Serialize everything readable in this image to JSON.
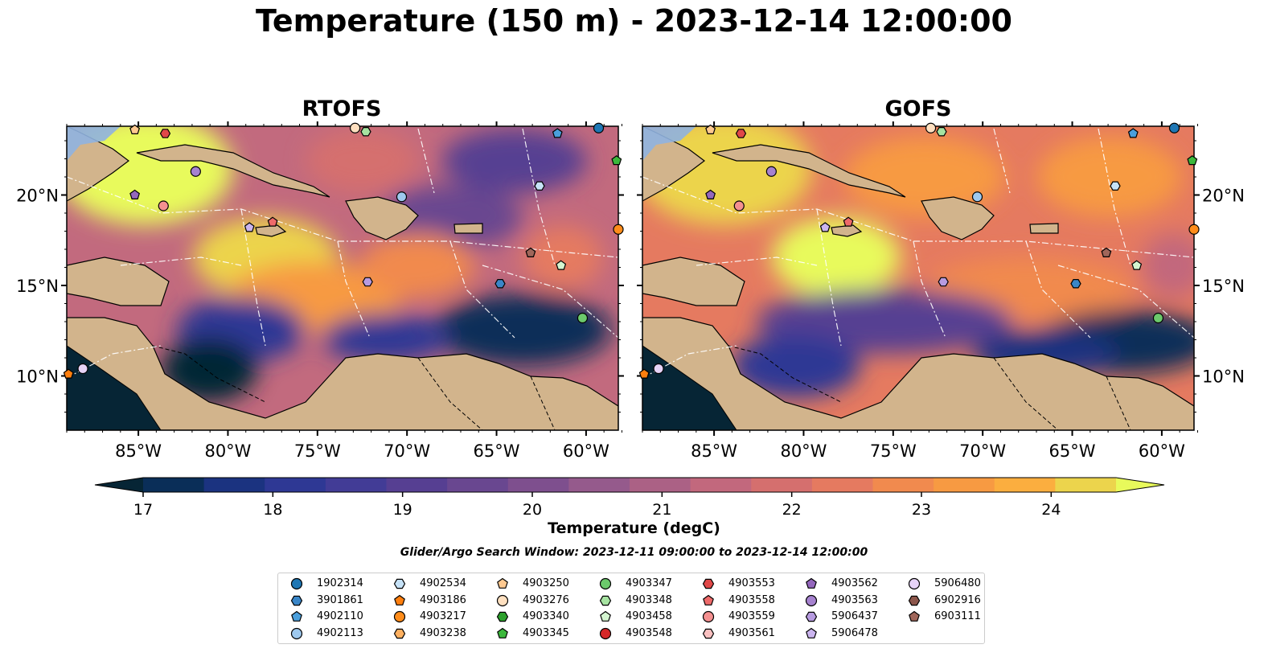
{
  "title": "Temperature (150 m) - 2023-12-14 12:00:00",
  "panels": [
    {
      "title": "RTOFS"
    },
    {
      "title": "GOFS"
    }
  ],
  "axes": {
    "lon_ticks": [
      "85°W",
      "80°W",
      "75°W",
      "70°W",
      "65°W",
      "60°W"
    ],
    "lat_ticks": [
      "20°N",
      "15°N",
      "10°N"
    ],
    "lon_range": [
      -89,
      -58.2
    ],
    "lat_range": [
      7,
      23.8
    ]
  },
  "colorbar": {
    "label": "Temperature (degC)",
    "ticks": [
      "17",
      "18",
      "19",
      "20",
      "21",
      "22",
      "23",
      "24"
    ],
    "min": 16.5,
    "max": 24.5,
    "colors": [
      "#062535",
      "#0a2e58",
      "#1b3380",
      "#2e3894",
      "#423c96",
      "#563f92",
      "#694790",
      "#7e4f8e",
      "#955a8c",
      "#ab6185",
      "#c2687d",
      "#d56f6e",
      "#e57a60",
      "#f18a4e",
      "#f79a42",
      "#fbae3f",
      "#ecd44c",
      "#e8fa5b"
    ]
  },
  "search_window": "Glider/Argo Search Window: 2023-12-11 09:00:00 to 2023-12-14 12:00:00",
  "legend": [
    {
      "id": "1902314",
      "marker": "circle",
      "color": "#1f77b4"
    },
    {
      "id": "3901861",
      "marker": "hexagon",
      "color": "#3a86c8"
    },
    {
      "id": "4902110",
      "marker": "pentagon",
      "color": "#4a9fdc"
    },
    {
      "id": "4902113",
      "marker": "circle",
      "color": "#9ec9ef"
    },
    {
      "id": "4902534",
      "marker": "hexagon",
      "color": "#c6e2f7"
    },
    {
      "id": "4903186",
      "marker": "pentagon",
      "color": "#ff7f0e"
    },
    {
      "id": "4903217",
      "marker": "circle",
      "color": "#ff8c1a"
    },
    {
      "id": "4903238",
      "marker": "hexagon",
      "color": "#ffb060"
    },
    {
      "id": "4903250",
      "marker": "pentagon",
      "color": "#ffc990"
    },
    {
      "id": "4903276",
      "marker": "circle",
      "color": "#ffe0c0"
    },
    {
      "id": "4903340",
      "marker": "hexagon",
      "color": "#2ca02c"
    },
    {
      "id": "4903345",
      "marker": "pentagon",
      "color": "#3cb83c"
    },
    {
      "id": "4903347",
      "marker": "circle",
      "color": "#6cc96c"
    },
    {
      "id": "4903348",
      "marker": "hexagon",
      "color": "#a6e3a1"
    },
    {
      "id": "4903458",
      "marker": "pentagon",
      "color": "#d4f5d0"
    },
    {
      "id": "4903548",
      "marker": "circle",
      "color": "#d62728"
    },
    {
      "id": "4903553",
      "marker": "hexagon",
      "color": "#e04848"
    },
    {
      "id": "4903558",
      "marker": "pentagon",
      "color": "#ee6a6a"
    },
    {
      "id": "4903559",
      "marker": "circle",
      "color": "#f49090"
    },
    {
      "id": "4903561",
      "marker": "hexagon",
      "color": "#f9c0c0"
    },
    {
      "id": "4903562",
      "marker": "pentagon",
      "color": "#9467bd"
    },
    {
      "id": "4903563",
      "marker": "circle",
      "color": "#a682cf"
    },
    {
      "id": "5906437",
      "marker": "hexagon",
      "color": "#b79be0"
    },
    {
      "id": "5906478",
      "marker": "pentagon",
      "color": "#cbb5ef"
    },
    {
      "id": "5906480",
      "marker": "circle",
      "color": "#e6d3f7"
    },
    {
      "id": "6902916",
      "marker": "hexagon",
      "color": "#8c564b"
    },
    {
      "id": "6903111",
      "marker": "pentagon",
      "color": "#a0665a"
    }
  ],
  "map_markers": [
    {
      "id": "1902314",
      "lon": -59.3,
      "lat": 23.7
    },
    {
      "id": "3901861",
      "lon": -64.8,
      "lat": 15.1
    },
    {
      "id": "4902110",
      "lon": -61.6,
      "lat": 23.4
    },
    {
      "id": "4902113",
      "lon": -70.3,
      "lat": 19.9
    },
    {
      "id": "4902534",
      "lon": -62.6,
      "lat": 20.5
    },
    {
      "id": "4903186",
      "lon": -88.9,
      "lat": 10.1
    },
    {
      "id": "4903217",
      "lon": -58.2,
      "lat": 18.1
    },
    {
      "id": "4903250",
      "lon": -85.2,
      "lat": 23.6
    },
    {
      "id": "4903276",
      "lon": -72.9,
      "lat": 23.7
    },
    {
      "id": "4903345",
      "lon": -58.3,
      "lat": 21.9
    },
    {
      "id": "4903347",
      "lon": -60.2,
      "lat": 13.2
    },
    {
      "id": "4903348",
      "lon": -72.3,
      "lat": 23.5
    },
    {
      "id": "4903458",
      "lon": -61.4,
      "lat": 16.1
    },
    {
      "id": "4903553",
      "lon": -83.5,
      "lat": 23.4
    },
    {
      "id": "4903558",
      "lon": -77.5,
      "lat": 18.5
    },
    {
      "id": "4903559",
      "lon": -83.6,
      "lat": 19.4
    },
    {
      "id": "4903562",
      "lon": -85.2,
      "lat": 20.0
    },
    {
      "id": "4903563",
      "lon": -81.8,
      "lat": 21.3
    },
    {
      "id": "5906437",
      "lon": -72.2,
      "lat": 15.2
    },
    {
      "id": "5906478",
      "lon": -78.8,
      "lat": 18.2
    },
    {
      "id": "5906480",
      "lon": -88.1,
      "lat": 10.4
    },
    {
      "id": "6903111",
      "lon": -63.1,
      "lat": 16.8
    }
  ]
}
